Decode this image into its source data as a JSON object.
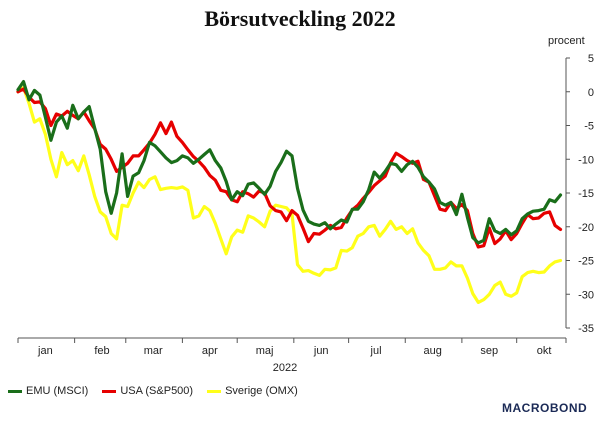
{
  "chart_data": {
    "type": "line",
    "title": "Börsutveckling 2022",
    "y_unit": "procent",
    "xlabel": "2022",
    "ylim": [
      -35,
      5
    ],
    "yticks": [
      5,
      0,
      -5,
      -10,
      -15,
      -20,
      -25,
      -30,
      -35
    ],
    "xlim": [
      0,
      300
    ],
    "month_labels": [
      "jan",
      "feb",
      "mar",
      "apr",
      "maj",
      "jun",
      "jul",
      "aug",
      "sep",
      "okt"
    ],
    "month_positions": [
      15,
      46,
      74,
      105,
      135,
      166,
      196,
      227,
      258,
      288
    ],
    "series": [
      {
        "name": "EMU (MSCI)",
        "color": "#1a6e1a",
        "x": [
          0,
          3,
          6,
          9,
          12,
          15,
          18,
          21,
          24,
          27,
          30,
          33,
          36,
          39,
          42,
          45,
          48,
          51,
          54,
          57,
          60,
          63,
          66,
          69,
          72,
          75,
          78,
          81,
          84,
          87,
          90,
          93,
          96,
          99,
          102,
          105,
          108,
          111,
          114,
          117,
          120,
          123,
          126,
          129,
          132,
          135,
          138,
          141,
          144,
          147,
          150,
          153,
          156,
          159,
          162,
          165,
          168,
          171,
          174,
          177,
          180,
          183,
          186,
          189,
          192,
          195,
          198,
          201,
          204,
          207,
          210,
          213,
          216,
          219,
          222,
          225,
          228,
          231,
          234,
          237,
          240,
          243,
          246,
          249,
          252,
          255,
          258,
          261,
          264,
          267,
          270,
          273,
          276,
          279,
          282,
          285,
          288,
          291,
          294,
          297
        ],
        "values": [
          0.3,
          1.5,
          -1.2,
          0.2,
          -0.5,
          -3.8,
          -7.2,
          -4.5,
          -3.6,
          -5.4,
          -2.0,
          -4.0,
          -3.0,
          -2.2,
          -5.4,
          -8.5,
          -14.8,
          -18.0,
          -15.0,
          -9.2,
          -15.5,
          -12.5,
          -12.0,
          -10.2,
          -7.5,
          -8.0,
          -8.9,
          -9.8,
          -10.5,
          -10.2,
          -9.5,
          -9.8,
          -10.6,
          -10.0,
          -9.3,
          -8.6,
          -10.2,
          -11.3,
          -13.3,
          -16.0,
          -14.8,
          -15.4,
          -13.7,
          -13.5,
          -14.3,
          -15.2,
          -14.0,
          -11.8,
          -10.5,
          -8.8,
          -9.5,
          -14.3,
          -17.5,
          -19.2,
          -19.6,
          -19.8,
          -19.4,
          -20.3,
          -19.6,
          -19.0,
          -19.3,
          -17.4,
          -17.4,
          -16.3,
          -14.5,
          -11.9,
          -12.8,
          -11.8,
          -10.6,
          -10.8,
          -11.8,
          -10.8,
          -10.3,
          -11.2,
          -12.6,
          -13.4,
          -14.4,
          -16.4,
          -16.8,
          -16.4,
          -18.2,
          -15.2,
          -18.6,
          -21.6,
          -22.4,
          -22.0,
          -18.8,
          -20.6,
          -21.0,
          -20.4,
          -21.2,
          -20.6,
          -18.8,
          -18.1,
          -17.7,
          -17.6,
          -17.4,
          -16.0,
          -16.3,
          -15.3
        ]
      },
      {
        "name": "USA (S&P500)",
        "color": "#e60000",
        "x": [
          0,
          3,
          6,
          9,
          12,
          15,
          18,
          21,
          24,
          27,
          30,
          33,
          36,
          39,
          42,
          45,
          48,
          51,
          54,
          57,
          60,
          63,
          66,
          69,
          72,
          75,
          78,
          81,
          84,
          87,
          90,
          93,
          96,
          99,
          102,
          105,
          108,
          111,
          114,
          117,
          120,
          123,
          126,
          129,
          132,
          135,
          138,
          141,
          144,
          147,
          150,
          153,
          156,
          159,
          162,
          165,
          168,
          171,
          174,
          177,
          180,
          183,
          186,
          189,
          192,
          195,
          198,
          201,
          204,
          207,
          210,
          213,
          216,
          219,
          222,
          225,
          228,
          231,
          234,
          237,
          240,
          243,
          246,
          249,
          252,
          255,
          258,
          261,
          264,
          267,
          270,
          273,
          276,
          279,
          282,
          285,
          288,
          291,
          294,
          297
        ],
        "values": [
          0.0,
          0.4,
          -0.8,
          -1.6,
          -1.5,
          -2.5,
          -5.0,
          -3.3,
          -3.6,
          -2.9,
          -3.5,
          -4.0,
          -3.0,
          -4.3,
          -5.5,
          -7.8,
          -8.5,
          -10.0,
          -11.8,
          -11.2,
          -10.6,
          -9.5,
          -9.5,
          -8.6,
          -7.6,
          -6.3,
          -4.6,
          -6.2,
          -4.5,
          -6.6,
          -7.5,
          -8.6,
          -9.6,
          -10.3,
          -11.2,
          -12.4,
          -13.1,
          -14.6,
          -14.8,
          -16.0,
          -16.3,
          -14.8,
          -15.1,
          -15.6,
          -14.7,
          -15.0,
          -16.9,
          -17.6,
          -17.8,
          -19.1,
          -17.6,
          -18.3,
          -20.2,
          -22.2,
          -21.0,
          -21.1,
          -20.5,
          -19.8,
          -20.3,
          -20.1,
          -18.7,
          -17.5,
          -16.8,
          -15.8,
          -14.9,
          -13.9,
          -13.2,
          -12.5,
          -10.5,
          -9.1,
          -9.6,
          -10.2,
          -10.6,
          -10.3,
          -13.0,
          -13.4,
          -15.4,
          -17.4,
          -17.6,
          -16.4,
          -17.3,
          -16.7,
          -17.6,
          -21.0,
          -23.0,
          -22.8,
          -20.2,
          -22.5,
          -21.8,
          -20.6,
          -21.9,
          -21.0,
          -19.5,
          -18.2,
          -18.8,
          -18.7,
          -18.0,
          -17.8,
          -19.8,
          -20.4
        ]
      },
      {
        "name": "Sverige (OMX)",
        "color": "#ffff1a",
        "x": [
          0,
          3,
          6,
          9,
          12,
          15,
          18,
          21,
          24,
          27,
          30,
          33,
          36,
          39,
          42,
          45,
          48,
          51,
          54,
          57,
          60,
          63,
          66,
          69,
          72,
          75,
          78,
          81,
          84,
          87,
          90,
          93,
          96,
          99,
          102,
          105,
          108,
          111,
          114,
          117,
          120,
          123,
          126,
          129,
          132,
          135,
          138,
          141,
          144,
          147,
          150,
          153,
          156,
          159,
          162,
          165,
          168,
          171,
          174,
          177,
          180,
          183,
          186,
          189,
          192,
          195,
          198,
          201,
          204,
          207,
          210,
          213,
          216,
          219,
          222,
          225,
          228,
          231,
          234,
          237,
          240,
          243,
          246,
          249,
          252,
          255,
          258,
          261,
          264,
          267,
          270,
          273,
          276,
          279,
          282,
          285,
          288,
          291,
          294,
          297
        ],
        "values": [
          0.0,
          0.6,
          -1.7,
          -4.5,
          -4.0,
          -6.3,
          -10.0,
          -12.6,
          -9.0,
          -10.8,
          -10.2,
          -11.7,
          -9.5,
          -12.3,
          -15.5,
          -17.8,
          -18.5,
          -21.0,
          -21.8,
          -16.8,
          -17.0,
          -15.0,
          -13.4,
          -14.2,
          -13.0,
          -12.6,
          -14.5,
          -14.3,
          -14.2,
          -14.3,
          -14.1,
          -14.6,
          -18.7,
          -18.4,
          -17.0,
          -17.6,
          -19.5,
          -21.8,
          -24.0,
          -21.5,
          -20.5,
          -20.8,
          -18.4,
          -18.7,
          -19.3,
          -20.0,
          -17.7,
          -16.8,
          -17.0,
          -17.2,
          -18.1,
          -25.6,
          -26.6,
          -26.5,
          -26.9,
          -27.2,
          -26.3,
          -26.4,
          -26.1,
          -23.5,
          -23.6,
          -23.1,
          -21.4,
          -21.0,
          -20.0,
          -19.8,
          -21.4,
          -20.4,
          -19.2,
          -20.4,
          -20.0,
          -21.0,
          -20.3,
          -22.4,
          -23.5,
          -24.3,
          -26.3,
          -26.3,
          -26.1,
          -25.2,
          -25.8,
          -25.8,
          -27.6,
          -29.9,
          -31.2,
          -30.8,
          -30.0,
          -28.7,
          -28.2,
          -30.0,
          -30.3,
          -29.8,
          -27.4,
          -26.8,
          -26.6,
          -26.8,
          -26.7,
          -25.8,
          -25.2,
          -25.0
        ]
      }
    ]
  },
  "branding": {
    "logo_text": "MACROBOND"
  }
}
